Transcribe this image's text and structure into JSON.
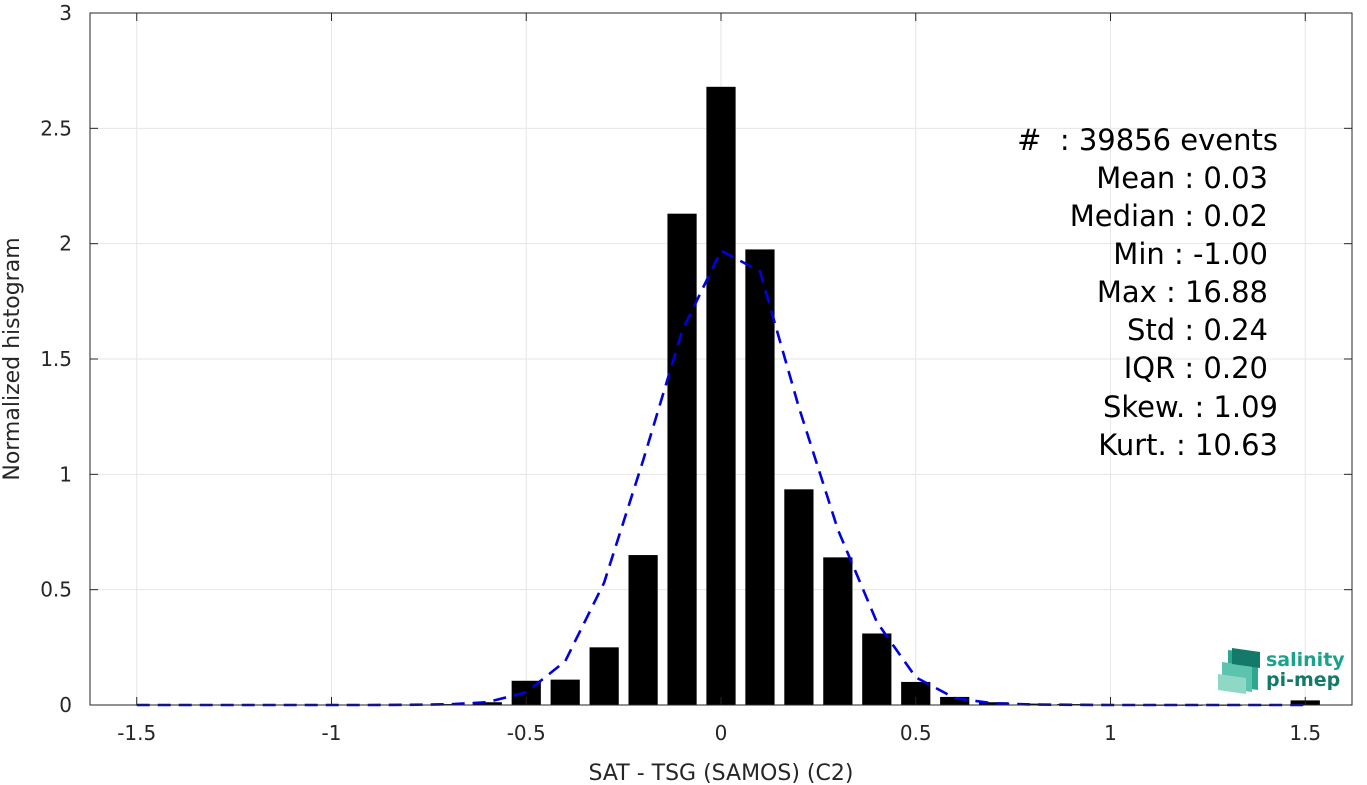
{
  "chart_data": {
    "type": "bar",
    "title": "",
    "xlabel": "SAT - TSG (SAMOS) (C2)",
    "ylabel": "Normalized histogram",
    "xlim": [
      -1.62,
      1.62
    ],
    "ylim": [
      0,
      3
    ],
    "grid": true,
    "bar_width": 0.075,
    "x_ticks": [
      -1.5,
      -1,
      -0.5,
      0,
      0.5,
      1,
      1.5
    ],
    "x_tick_labels": [
      "-1.5",
      "-1",
      "-0.5",
      "0",
      "0.5",
      "1",
      "1.5"
    ],
    "y_ticks": [
      0,
      0.5,
      1,
      1.5,
      2,
      2.5,
      3
    ],
    "y_tick_labels": [
      "0",
      "0.5",
      "1",
      "1.5",
      "2",
      "2.5",
      "3"
    ],
    "series": [
      {
        "type": "bar",
        "color": "#000000",
        "x": [
          -1.5,
          -1.4,
          -1.3,
          -1.2,
          -1.1,
          -1.0,
          -0.9,
          -0.8,
          -0.7,
          -0.6,
          -0.5,
          -0.4,
          -0.3,
          -0.2,
          -0.1,
          0.0,
          0.1,
          0.2,
          0.3,
          0.4,
          0.5,
          0.6,
          0.7,
          0.8,
          0.9,
          1.0,
          1.1,
          1.2,
          1.3,
          1.4,
          1.5
        ],
        "values": [
          0,
          0,
          0,
          0,
          0,
          0,
          0,
          0,
          0.004,
          0.012,
          0.105,
          0.11,
          0.25,
          0.65,
          2.13,
          2.68,
          1.975,
          0.935,
          0.64,
          0.31,
          0.1,
          0.035,
          0.012,
          0.006,
          0.004,
          0.002,
          0.001,
          0.001,
          0.001,
          0.001,
          0.02
        ]
      },
      {
        "type": "line",
        "style": "dashed",
        "color": "#0000e0",
        "x": [
          -1.5,
          -1.4,
          -1.3,
          -1.2,
          -1.1,
          -1.0,
          -0.9,
          -0.8,
          -0.7,
          -0.6,
          -0.5,
          -0.4,
          -0.3,
          -0.2,
          -0.1,
          0.0,
          0.1,
          0.2,
          0.3,
          0.4,
          0.5,
          0.6,
          0.7,
          0.8,
          0.9,
          1.0,
          1.1,
          1.2,
          1.3,
          1.4,
          1.5
        ],
        "values": [
          0,
          0,
          0,
          0,
          0,
          0,
          0,
          0.001,
          0.003,
          0.012,
          0.055,
          0.19,
          0.53,
          1.06,
          1.62,
          1.97,
          1.88,
          1.29,
          0.76,
          0.36,
          0.12,
          0.03,
          0.007,
          0.002,
          0.001,
          0,
          0,
          0,
          0,
          0,
          0
        ]
      }
    ],
    "annotations": [
      "#  : 39856 events",
      "Mean : 0.03",
      "Median : 0.02",
      "Min : -1.00",
      "Max : 16.88",
      "Std : 0.24",
      "IQR : 0.20",
      "Skew. : 1.09",
      "Kurt. : 10.63"
    ]
  },
  "logo": {
    "line1": "salinity",
    "line2": "pi-mep",
    "color1": "#1aa38c",
    "color2": "#137a6a"
  }
}
